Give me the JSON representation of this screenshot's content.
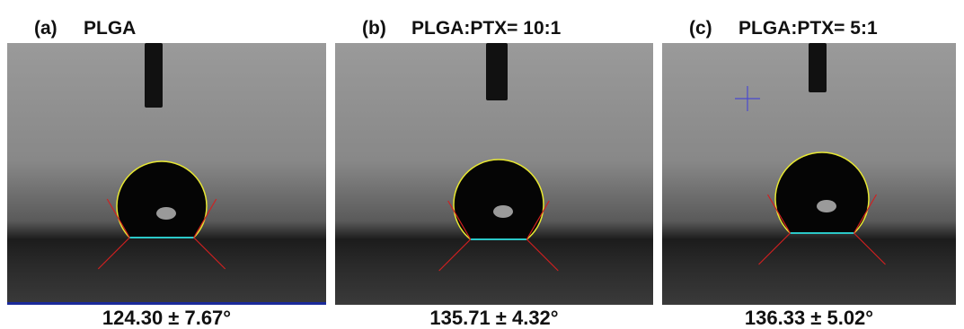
{
  "panels": [
    {
      "label": "(a)",
      "title": "PLGA",
      "caption": "124.30 ± 7.67°"
    },
    {
      "label": "(b)",
      "title": "PLGA:PTX= 10:1",
      "caption": "135.71 ± 4.32°"
    },
    {
      "label": "(c)",
      "title": "PLGA:PTX= 5:1",
      "caption": "136.33 ± 5.02°"
    }
  ]
}
